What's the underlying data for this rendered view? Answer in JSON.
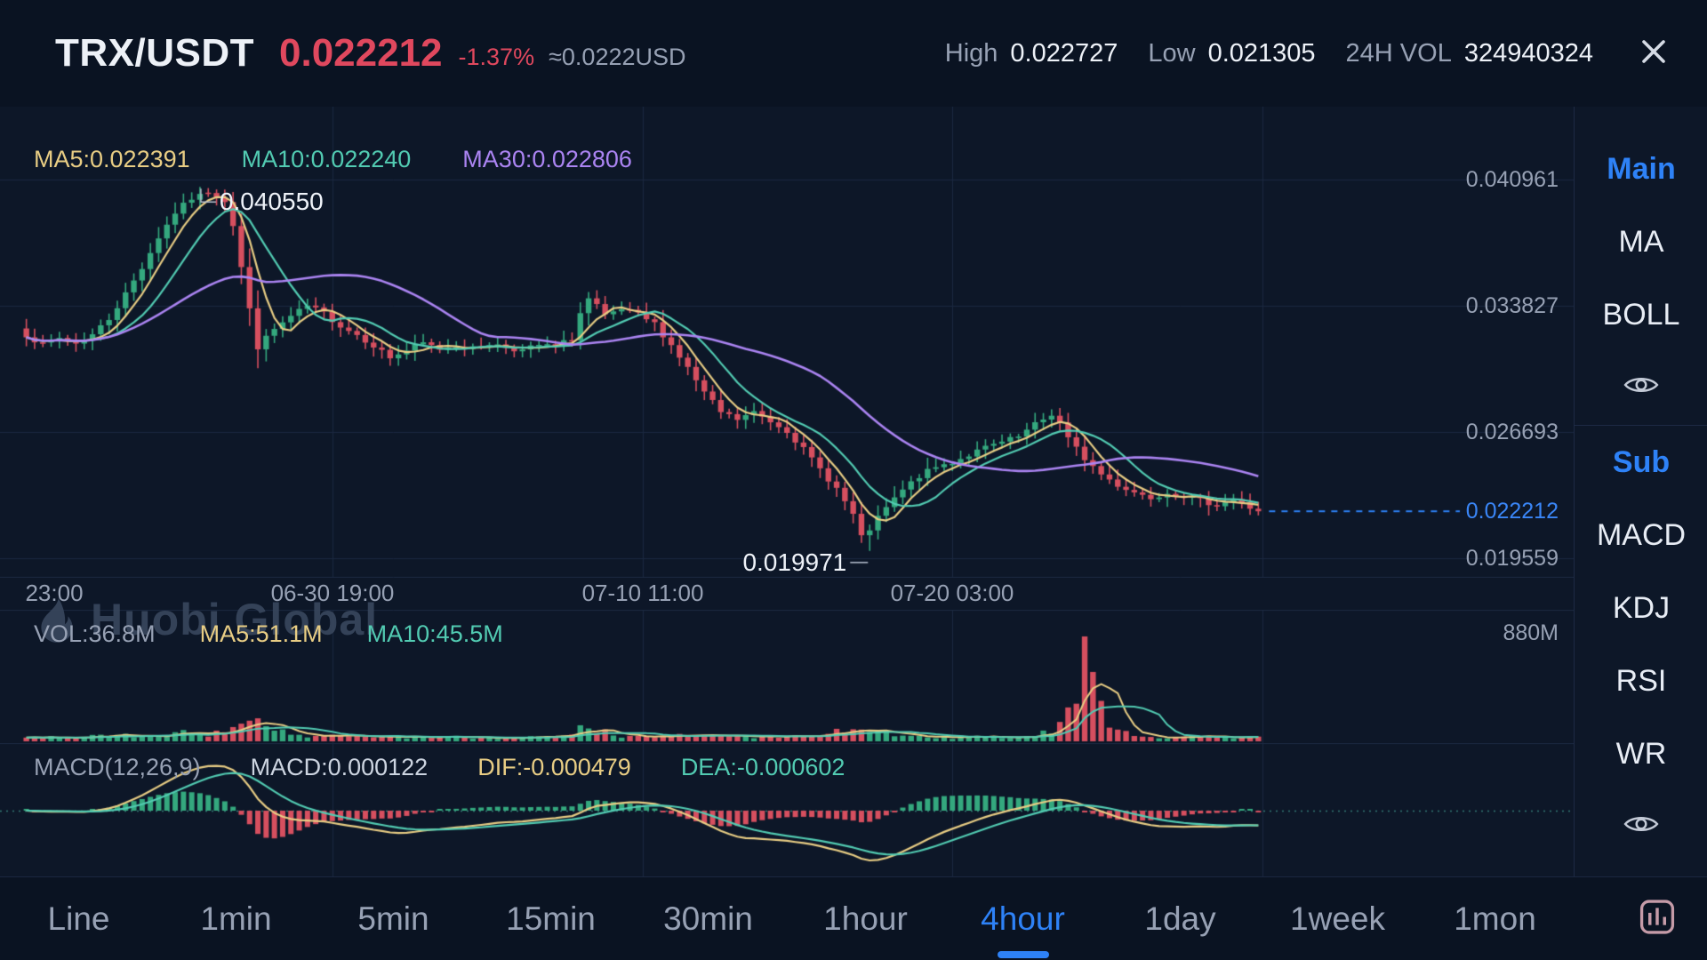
{
  "header": {
    "pair": "TRX/USDT",
    "last_price": "0.022212",
    "change_pct": "-1.37%",
    "approx": "≈0.0222USD",
    "high_label": "High",
    "high_value": "0.022727",
    "low_label": "Low",
    "low_value": "0.021305",
    "vol_label": "24H VOL",
    "vol_value": "324940324"
  },
  "main_legend": {
    "ma5": "MA5:0.022391",
    "ma10": "MA10:0.022240",
    "ma30": "MA30:0.022806"
  },
  "annotations": {
    "peak": "0.040550",
    "trough": "0.019971",
    "current": "0.022212"
  },
  "y_ticks": [
    "0.040961",
    "0.033827",
    "0.026693",
    "0.019559"
  ],
  "x_ticks": [
    "23:00",
    "06-30 19:00",
    "07-10 11:00",
    "07-20 03:00"
  ],
  "volume_legend": {
    "vol": "VOL:36.8M",
    "ma5": "MA5:51.1M",
    "ma10": "MA10:45.5M",
    "max": "880M"
  },
  "macd_legend": {
    "params": "MACD(12,26,9)",
    "macd": "MACD:0.000122",
    "dif": "DIF:-0.000479",
    "dea": "DEA:-0.000602"
  },
  "watermark": "Huobi Global",
  "sidebar": {
    "main_header": "Main",
    "main_items": [
      "MA",
      "BOLL"
    ],
    "sub_header": "Sub",
    "sub_items": [
      "MACD",
      "KDJ",
      "RSI",
      "WR"
    ]
  },
  "timeframes": [
    "Line",
    "1min",
    "5min",
    "15min",
    "30min",
    "1hour",
    "4hour",
    "1day",
    "1week",
    "1mon"
  ],
  "selected_timeframe": "4hour",
  "colors": {
    "up": "#34a87e",
    "down": "#d64f5f",
    "ma5": "#e8cd84",
    "ma10": "#52cbb2",
    "ma30": "#ab84f2",
    "accent": "#2e82f7",
    "grid": "#1b2840",
    "muted": "#97a1b4",
    "leader": "#b7c0cf"
  },
  "chart_data": {
    "type": "candlestick",
    "title": "TRX/USDT 4hour candlestick with volume and MACD",
    "y_axis_ticks": [
      0.040961,
      0.033827,
      0.026693,
      0.019559
    ],
    "x_axis_ticks": [
      "23:00",
      "06-30 19:00",
      "07-10 11:00",
      "07-20 03:00"
    ],
    "key_points": {
      "peak_high": 0.04055,
      "trough_low": 0.019971,
      "last_close": 0.022212,
      "high_24h": 0.022727,
      "low_24h": 0.021305,
      "vol_24h": 324940324
    },
    "num_candles": 150,
    "close_anchors": [
      [
        0,
        0.0322
      ],
      [
        2,
        0.0316
      ],
      [
        4,
        0.032
      ],
      [
        6,
        0.0317
      ],
      [
        8,
        0.0322
      ],
      [
        10,
        0.0331
      ],
      [
        12,
        0.0345
      ],
      [
        14,
        0.036
      ],
      [
        16,
        0.0377
      ],
      [
        18,
        0.0391
      ],
      [
        20,
        0.0399
      ],
      [
        22,
        0.0403
      ],
      [
        24,
        0.0398
      ],
      [
        25,
        0.0384
      ],
      [
        26,
        0.036
      ],
      [
        27,
        0.0336
      ],
      [
        28,
        0.0315
      ],
      [
        30,
        0.0325
      ],
      [
        32,
        0.0332
      ],
      [
        34,
        0.0338
      ],
      [
        36,
        0.0334
      ],
      [
        38,
        0.0327
      ],
      [
        40,
        0.0322
      ],
      [
        42,
        0.0316
      ],
      [
        44,
        0.0309
      ],
      [
        46,
        0.0313
      ],
      [
        48,
        0.0317
      ],
      [
        50,
        0.0314
      ],
      [
        52,
        0.0316
      ],
      [
        54,
        0.0314
      ],
      [
        56,
        0.0317
      ],
      [
        58,
        0.0315
      ],
      [
        60,
        0.0313
      ],
      [
        62,
        0.0316
      ],
      [
        64,
        0.0315
      ],
      [
        66,
        0.032
      ],
      [
        67,
        0.0334
      ],
      [
        68,
        0.0342
      ],
      [
        69,
        0.0338
      ],
      [
        70,
        0.0332
      ],
      [
        72,
        0.0336
      ],
      [
        74,
        0.0333
      ],
      [
        76,
        0.0328
      ],
      [
        78,
        0.0316
      ],
      [
        80,
        0.0303
      ],
      [
        82,
        0.0289
      ],
      [
        84,
        0.0278
      ],
      [
        86,
        0.0274
      ],
      [
        88,
        0.0278
      ],
      [
        90,
        0.0273
      ],
      [
        92,
        0.0268
      ],
      [
        94,
        0.0257
      ],
      [
        96,
        0.0246
      ],
      [
        98,
        0.0235
      ],
      [
        100,
        0.022
      ],
      [
        101,
        0.0207
      ],
      [
        102,
        0.0212
      ],
      [
        104,
        0.0224
      ],
      [
        106,
        0.0234
      ],
      [
        108,
        0.0242
      ],
      [
        110,
        0.0247
      ],
      [
        112,
        0.025
      ],
      [
        114,
        0.0254
      ],
      [
        116,
        0.0258
      ],
      [
        118,
        0.0261
      ],
      [
        120,
        0.0264
      ],
      [
        122,
        0.0271
      ],
      [
        124,
        0.0277
      ],
      [
        125,
        0.0272
      ],
      [
        126,
        0.0263
      ],
      [
        128,
        0.0252
      ],
      [
        130,
        0.0243
      ],
      [
        132,
        0.0237
      ],
      [
        134,
        0.0233
      ],
      [
        136,
        0.023
      ],
      [
        138,
        0.0233
      ],
      [
        140,
        0.0231
      ],
      [
        142,
        0.0228
      ],
      [
        144,
        0.0226
      ],
      [
        146,
        0.0229
      ],
      [
        148,
        0.0224
      ],
      [
        149,
        0.02225
      ]
    ],
    "volume": {
      "max_m": 880,
      "region_boosts": [
        [
          18,
          31,
          2.1
        ],
        [
          66,
          70,
          1.7
        ],
        [
          98,
          104,
          1.9
        ]
      ],
      "spike_profile": [
        [
          122,
          1.4
        ],
        [
          123,
          1.8
        ],
        [
          124,
          2.6
        ],
        [
          125,
          3.6
        ],
        [
          126,
          5.5
        ],
        [
          127,
          9
        ],
        [
          128,
          15
        ],
        [
          129,
          11
        ],
        [
          130,
          7
        ],
        [
          131,
          4.5
        ],
        [
          132,
          3
        ],
        [
          133,
          2.2
        ],
        [
          134,
          1.6
        ],
        [
          135,
          1.3
        ]
      ]
    },
    "macd_params": [
      12,
      26,
      9
    ],
    "ma_periods": [
      5,
      10,
      30
    ]
  }
}
